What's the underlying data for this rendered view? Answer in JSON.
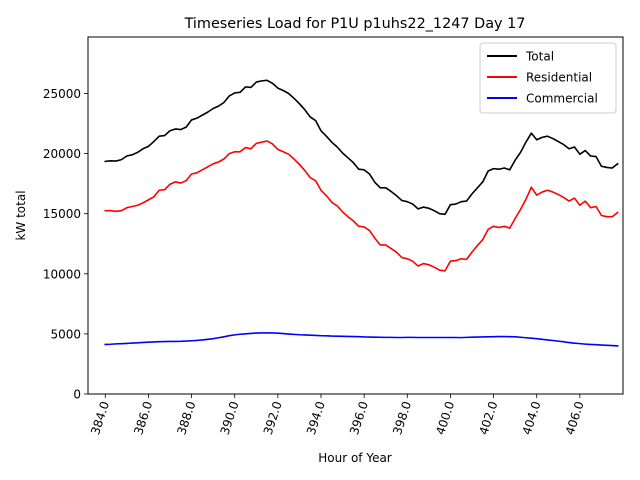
{
  "chart_data": {
    "type": "line",
    "title": "Timeseries Load for P1U p1uhs22_1247  Day 17",
    "xlabel": "Hour of Year",
    "ylabel": "kW total",
    "xlim": [
      383.2,
      408.0
    ],
    "ylim": [
      0,
      29700
    ],
    "xticks": [
      384.0,
      386.0,
      388.0,
      390.0,
      392.0,
      394.0,
      396.0,
      398.0,
      400.0,
      402.0,
      404.0,
      406.0
    ],
    "xtick_labels": [
      "384.0",
      "386.0",
      "388.0",
      "390.0",
      "392.0",
      "394.0",
      "396.0",
      "398.0",
      "400.0",
      "402.0",
      "404.0",
      "406.0"
    ],
    "yticks": [
      0,
      5000,
      10000,
      15000,
      20000,
      25000
    ],
    "ytick_labels": [
      "0",
      "5000",
      "10000",
      "15000",
      "20000",
      "25000"
    ],
    "legend_position": "top-right",
    "x": [
      384.0,
      384.25,
      384.5,
      384.75,
      385.0,
      385.25,
      385.5,
      385.75,
      386.0,
      386.25,
      386.5,
      386.75,
      387.0,
      387.25,
      387.5,
      387.75,
      388.0,
      388.25,
      388.5,
      388.75,
      389.0,
      389.25,
      389.5,
      389.75,
      390.0,
      390.25,
      390.5,
      390.75,
      391.0,
      391.25,
      391.5,
      391.75,
      392.0,
      392.25,
      392.5,
      392.75,
      393.0,
      393.25,
      393.5,
      393.75,
      394.0,
      394.25,
      394.5,
      394.75,
      395.0,
      395.25,
      395.5,
      395.75,
      396.0,
      396.25,
      396.5,
      396.75,
      397.0,
      397.25,
      397.5,
      397.75,
      398.0,
      398.25,
      398.5,
      398.75,
      399.0,
      399.25,
      399.5,
      399.75,
      400.0,
      400.25,
      400.5,
      400.75,
      401.0,
      401.25,
      401.5,
      401.75,
      402.0,
      402.25,
      402.5,
      402.75,
      403.0,
      403.25,
      403.5,
      403.75,
      404.0,
      404.25,
      404.5,
      404.75,
      405.0,
      405.25,
      405.5,
      405.75,
      406.0,
      406.25,
      406.5,
      406.75,
      407.0,
      407.25,
      407.5,
      407.75
    ],
    "series": [
      {
        "name": "Total",
        "color": "#000000",
        "values": [
          19350,
          19400,
          19380,
          19500,
          19800,
          19900,
          20100,
          20400,
          20600,
          21000,
          21450,
          21500,
          21900,
          22050,
          22000,
          22200,
          22800,
          22950,
          23200,
          23450,
          23750,
          23950,
          24250,
          24800,
          25050,
          25100,
          25550,
          25500,
          25950,
          26050,
          26100,
          25850,
          25450,
          25250,
          25000,
          24600,
          24150,
          23650,
          23050,
          22750,
          21900,
          21450,
          20950,
          20550,
          20050,
          19650,
          19250,
          18700,
          18650,
          18300,
          17600,
          17150,
          17150,
          16850,
          16500,
          16100,
          16000,
          15800,
          15400,
          15550,
          15450,
          15250,
          15000,
          14950,
          15750,
          15800,
          16000,
          16050,
          16650,
          17150,
          17650,
          18550,
          18750,
          18700,
          18800,
          18650,
          19450,
          20100,
          20950,
          21700,
          21150,
          21350,
          21450,
          21250,
          21000,
          20750,
          20400,
          20550,
          19950,
          20250,
          19800,
          19750,
          18950,
          18850,
          18800,
          19150
        ]
      },
      {
        "name": "Residential",
        "color": "#ff0000",
        "values": [
          15250,
          15250,
          15200,
          15250,
          15500,
          15600,
          15700,
          15900,
          16150,
          16400,
          16950,
          17000,
          17450,
          17650,
          17550,
          17750,
          18300,
          18400,
          18650,
          18900,
          19150,
          19300,
          19550,
          20000,
          20150,
          20150,
          20500,
          20400,
          20850,
          20950,
          21050,
          20800,
          20350,
          20150,
          19950,
          19550,
          19100,
          18600,
          18000,
          17750,
          16950,
          16500,
          15950,
          15650,
          15150,
          14750,
          14400,
          13950,
          13900,
          13600,
          12950,
          12400,
          12400,
          12100,
          11800,
          11350,
          11250,
          11050,
          10650,
          10850,
          10750,
          10550,
          10300,
          10250,
          11050,
          11100,
          11250,
          11200,
          11800,
          12350,
          12850,
          13700,
          13950,
          13850,
          13950,
          13800,
          14600,
          15350,
          16200,
          17200,
          16550,
          16800,
          16950,
          16800,
          16600,
          16350,
          16050,
          16300,
          15700,
          16050,
          15500,
          15600,
          14850,
          14750,
          14750,
          15100
        ]
      },
      {
        "name": "Commercial",
        "color": "#0000ff",
        "values": [
          4120,
          4140,
          4170,
          4190,
          4210,
          4240,
          4260,
          4290,
          4310,
          4330,
          4350,
          4360,
          4370,
          4370,
          4380,
          4400,
          4430,
          4460,
          4500,
          4550,
          4600,
          4680,
          4760,
          4850,
          4920,
          4970,
          5010,
          5040,
          5070,
          5080,
          5080,
          5080,
          5060,
          5030,
          4990,
          4960,
          4930,
          4910,
          4890,
          4870,
          4850,
          4840,
          4820,
          4810,
          4800,
          4790,
          4780,
          4770,
          4750,
          4740,
          4730,
          4720,
          4710,
          4710,
          4700,
          4700,
          4710,
          4710,
          4700,
          4700,
          4700,
          4700,
          4700,
          4700,
          4700,
          4700,
          4690,
          4710,
          4730,
          4740,
          4750,
          4760,
          4770,
          4780,
          4780,
          4770,
          4760,
          4720,
          4680,
          4640,
          4600,
          4550,
          4500,
          4450,
          4400,
          4340,
          4280,
          4230,
          4190,
          4150,
          4120,
          4100,
          4070,
          4050,
          4030,
          4000
        ]
      }
    ]
  }
}
